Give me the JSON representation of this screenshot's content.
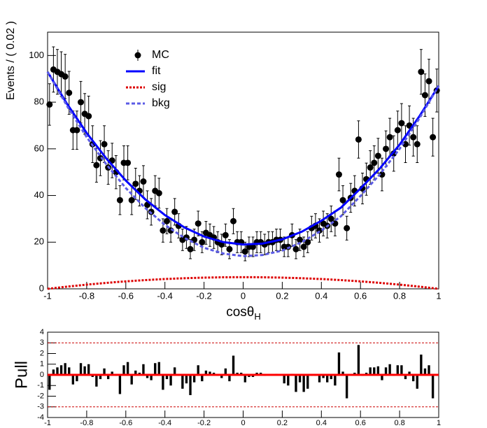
{
  "chart_data": [
    {
      "type": "errorbar",
      "ylabel": "Events / ( 0.02 )",
      "xlabel": "cosθ",
      "xlabel_subscript": "H",
      "xlim": [
        -1,
        1
      ],
      "xticks": [
        -1,
        -0.8,
        -0.6,
        -0.4,
        -0.2,
        0,
        0.2,
        0.4,
        0.6,
        0.8,
        1
      ],
      "ylim": [
        0,
        110
      ],
      "yticks": [
        0,
        20,
        40,
        60,
        80,
        100
      ],
      "legend": "top-left",
      "x": [
        -0.99,
        -0.97,
        -0.95,
        -0.93,
        -0.91,
        -0.89,
        -0.87,
        -0.85,
        -0.83,
        -0.81,
        -0.79,
        -0.77,
        -0.75,
        -0.73,
        -0.71,
        -0.69,
        -0.67,
        -0.65,
        -0.63,
        -0.61,
        -0.59,
        -0.57,
        -0.55,
        -0.53,
        -0.51,
        -0.49,
        -0.47,
        -0.45,
        -0.43,
        -0.41,
        -0.39,
        -0.37,
        -0.35,
        -0.33,
        -0.31,
        -0.29,
        -0.27,
        -0.25,
        -0.23,
        -0.21,
        -0.19,
        -0.17,
        -0.15,
        -0.13,
        -0.11,
        -0.09,
        -0.07,
        -0.05,
        -0.03,
        -0.01,
        0.01,
        0.03,
        0.05,
        0.07,
        0.09,
        0.11,
        0.13,
        0.15,
        0.17,
        0.19,
        0.21,
        0.23,
        0.25,
        0.27,
        0.29,
        0.31,
        0.33,
        0.35,
        0.37,
        0.39,
        0.41,
        0.43,
        0.45,
        0.47,
        0.49,
        0.51,
        0.53,
        0.55,
        0.57,
        0.59,
        0.61,
        0.63,
        0.65,
        0.67,
        0.69,
        0.71,
        0.73,
        0.75,
        0.77,
        0.79,
        0.81,
        0.83,
        0.85,
        0.87,
        0.89,
        0.91,
        0.93,
        0.95,
        0.97,
        0.99
      ],
      "series": [
        {
          "name": "MC",
          "color": "#000000",
          "style": "points",
          "values": [
            79,
            94,
            93,
            92,
            91,
            84,
            68,
            68,
            80,
            75,
            74,
            62,
            53,
            56,
            62,
            52,
            55,
            50,
            38,
            54,
            54,
            38,
            45,
            42,
            46,
            36,
            33,
            42,
            41,
            25,
            29,
            25,
            33,
            27,
            21,
            22,
            17,
            21,
            28,
            20,
            24,
            23,
            22,
            20,
            19,
            23,
            17,
            29,
            20,
            20,
            16,
            18,
            18,
            20,
            20,
            19,
            20,
            20,
            21,
            21,
            18,
            18,
            23,
            17,
            21,
            18,
            20,
            26,
            27,
            25,
            28,
            27,
            30,
            28,
            49,
            38,
            26,
            39,
            42,
            64,
            43,
            47,
            52,
            54,
            57,
            49,
            60,
            65,
            58,
            68,
            71,
            62,
            70,
            65,
            62,
            93,
            83,
            89,
            65,
            85
          ],
          "errors": [
            8.9,
            9.7,
            9.6,
            9.6,
            9.5,
            9.2,
            8.2,
            8.2,
            8.9,
            8.7,
            8.6,
            7.9,
            7.3,
            7.5,
            7.9,
            7.2,
            7.4,
            7.1,
            6.2,
            7.3,
            7.3,
            6.2,
            6.7,
            6.5,
            6.8,
            6,
            5.7,
            6.5,
            6.4,
            5,
            5.4,
            5,
            5.7,
            5.2,
            4.6,
            4.7,
            4.1,
            4.6,
            5.3,
            4.5,
            4.9,
            4.8,
            4.7,
            4.5,
            4.4,
            4.8,
            4.1,
            5.4,
            4.5,
            4.5,
            4,
            4.2,
            4.2,
            4.5,
            4.5,
            4.4,
            4.5,
            4.5,
            4.6,
            4.6,
            4.2,
            4.2,
            4.8,
            4.1,
            4.6,
            4.2,
            4.5,
            5.1,
            5.2,
            5,
            5.3,
            5.2,
            5.5,
            5.3,
            7,
            6.2,
            5.1,
            6.2,
            6.5,
            8,
            6.6,
            6.9,
            7.2,
            7.3,
            7.5,
            7,
            7.7,
            8.1,
            7.6,
            8.2,
            8.4,
            7.9,
            8.4,
            8.1,
            7.9,
            9.6,
            9.1,
            9.4,
            8.1,
            9.2
          ]
        },
        {
          "name": "fit",
          "color": "#0000ff",
          "style": "solid",
          "x": [
            -1,
            -0.9,
            -0.8,
            -0.7,
            -0.6,
            -0.5,
            -0.4,
            -0.3,
            -0.2,
            -0.1,
            0,
            0.1,
            0.2,
            0.3,
            0.4,
            0.5,
            0.6,
            0.7,
            0.8,
            0.9,
            1
          ],
          "values": [
            93,
            79.2,
            66.8,
            55.9,
            46.4,
            38.3,
            31.6,
            26.3,
            22.4,
            20.0,
            19,
            19.4,
            21.2,
            24.5,
            29.2,
            34.8,
            43.0,
            51.7,
            61.8,
            73.8,
            87
          ]
        },
        {
          "name": "sig",
          "color": "#dd0000",
          "style": "dotted",
          "x": [
            -1,
            -0.9,
            -0.8,
            -0.7,
            -0.6,
            -0.5,
            -0.4,
            -0.3,
            -0.2,
            -0.1,
            0,
            0.1,
            0.2,
            0.3,
            0.4,
            0.5,
            0.6,
            0.7,
            0.8,
            0.9,
            1
          ],
          "values": [
            0,
            0.95,
            1.8,
            2.55,
            3.2,
            3.75,
            4.2,
            4.55,
            4.8,
            4.95,
            5,
            4.95,
            4.8,
            4.55,
            4.2,
            3.75,
            3.2,
            2.55,
            1.8,
            0.95,
            0
          ]
        },
        {
          "name": "bkg",
          "color": "#5b5be6",
          "style": "dashed",
          "x": [
            -1,
            -0.9,
            -0.8,
            -0.7,
            -0.6,
            -0.5,
            -0.4,
            -0.3,
            -0.2,
            -0.1,
            0,
            0.1,
            0.2,
            0.3,
            0.4,
            0.5,
            0.6,
            0.7,
            0.8,
            0.9,
            1
          ],
          "values": [
            93,
            78.3,
            65.0,
            53.4,
            43.2,
            34.6,
            27.4,
            21.8,
            17.6,
            15.1,
            14,
            14.5,
            16.4,
            20.0,
            25.0,
            31.1,
            39.8,
            49.2,
            60.0,
            72.9,
            87
          ]
        }
      ]
    },
    {
      "type": "bar",
      "ylabel": "Pull",
      "xlim": [
        -1,
        1
      ],
      "xticks": [
        -1,
        -0.8,
        -0.6,
        -0.4,
        -0.2,
        0,
        0.2,
        0.4,
        0.6,
        0.8,
        1
      ],
      "ylim": [
        -4,
        4
      ],
      "yticks": [
        -4,
        -3,
        -2,
        -1,
        0,
        1,
        2,
        3,
        4
      ],
      "color": "#000000",
      "reference_lines": [
        {
          "value": 0,
          "color": "#ff0000",
          "style": "solid"
        },
        {
          "value": 3,
          "color": "#cc0000",
          "style": "dashed"
        },
        {
          "value": -3,
          "color": "#cc0000",
          "style": "dashed"
        }
      ],
      "x": [
        -0.99,
        -0.97,
        -0.95,
        -0.93,
        -0.91,
        -0.89,
        -0.87,
        -0.85,
        -0.83,
        -0.81,
        -0.79,
        -0.77,
        -0.75,
        -0.73,
        -0.71,
        -0.69,
        -0.67,
        -0.65,
        -0.63,
        -0.61,
        -0.59,
        -0.57,
        -0.55,
        -0.53,
        -0.51,
        -0.49,
        -0.47,
        -0.45,
        -0.43,
        -0.41,
        -0.39,
        -0.37,
        -0.35,
        -0.33,
        -0.31,
        -0.29,
        -0.27,
        -0.25,
        -0.23,
        -0.21,
        -0.19,
        -0.17,
        -0.15,
        -0.13,
        -0.11,
        -0.09,
        -0.07,
        -0.05,
        -0.03,
        -0.01,
        0.01,
        0.03,
        0.05,
        0.07,
        0.09,
        0.11,
        0.13,
        0.15,
        0.17,
        0.19,
        0.21,
        0.23,
        0.25,
        0.27,
        0.29,
        0.31,
        0.33,
        0.35,
        0.37,
        0.39,
        0.41,
        0.43,
        0.45,
        0.47,
        0.49,
        0.51,
        0.53,
        0.55,
        0.57,
        0.59,
        0.61,
        0.63,
        0.65,
        0.67,
        0.69,
        0.71,
        0.73,
        0.75,
        0.77,
        0.79,
        0.81,
        0.83,
        0.85,
        0.87,
        0.89,
        0.91,
        0.93,
        0.95,
        0.97,
        0.99
      ],
      "values": [
        -1.4,
        0.5,
        0.7,
        0.9,
        1.1,
        0.7,
        -0.9,
        -0.6,
        1.1,
        0.8,
        1.0,
        -0.2,
        -1.1,
        -0.4,
        0.6,
        -0.4,
        0.3,
        -0.1,
        -1.8,
        0.9,
        1.2,
        -0.9,
        0.4,
        0.2,
        1.0,
        -0.3,
        -0.5,
        1.1,
        1.2,
        -1.4,
        -0.4,
        -1.0,
        0.7,
        -0.1,
        -1.3,
        -0.8,
        -1.9,
        -0.7,
        0.9,
        -0.6,
        0.4,
        0.3,
        0.2,
        -0.1,
        -0.3,
        0.6,
        -0.6,
        1.8,
        0.2,
        0.2,
        -0.7,
        -0.2,
        -0.2,
        0.2,
        0.2,
        -0.1,
        0.0,
        0.0,
        0.1,
        0.0,
        -0.8,
        -1.0,
        0.1,
        -1.6,
        -0.7,
        -1.6,
        -1.3,
        -0.1,
        -0.1,
        -0.7,
        -0.3,
        -0.7,
        -0.4,
        -1.0,
        2.1,
        0.3,
        -2.2,
        0.0,
        0.2,
        2.8,
        -0.1,
        0.2,
        0.7,
        0.7,
        0.8,
        -0.5,
        0.7,
        1.0,
        -0.1,
        0.9,
        0.9,
        -0.4,
        0.3,
        -0.6,
        -1.3,
        1.9,
        0.6,
        0.9,
        -2.2,
        -0.1
      ]
    }
  ]
}
